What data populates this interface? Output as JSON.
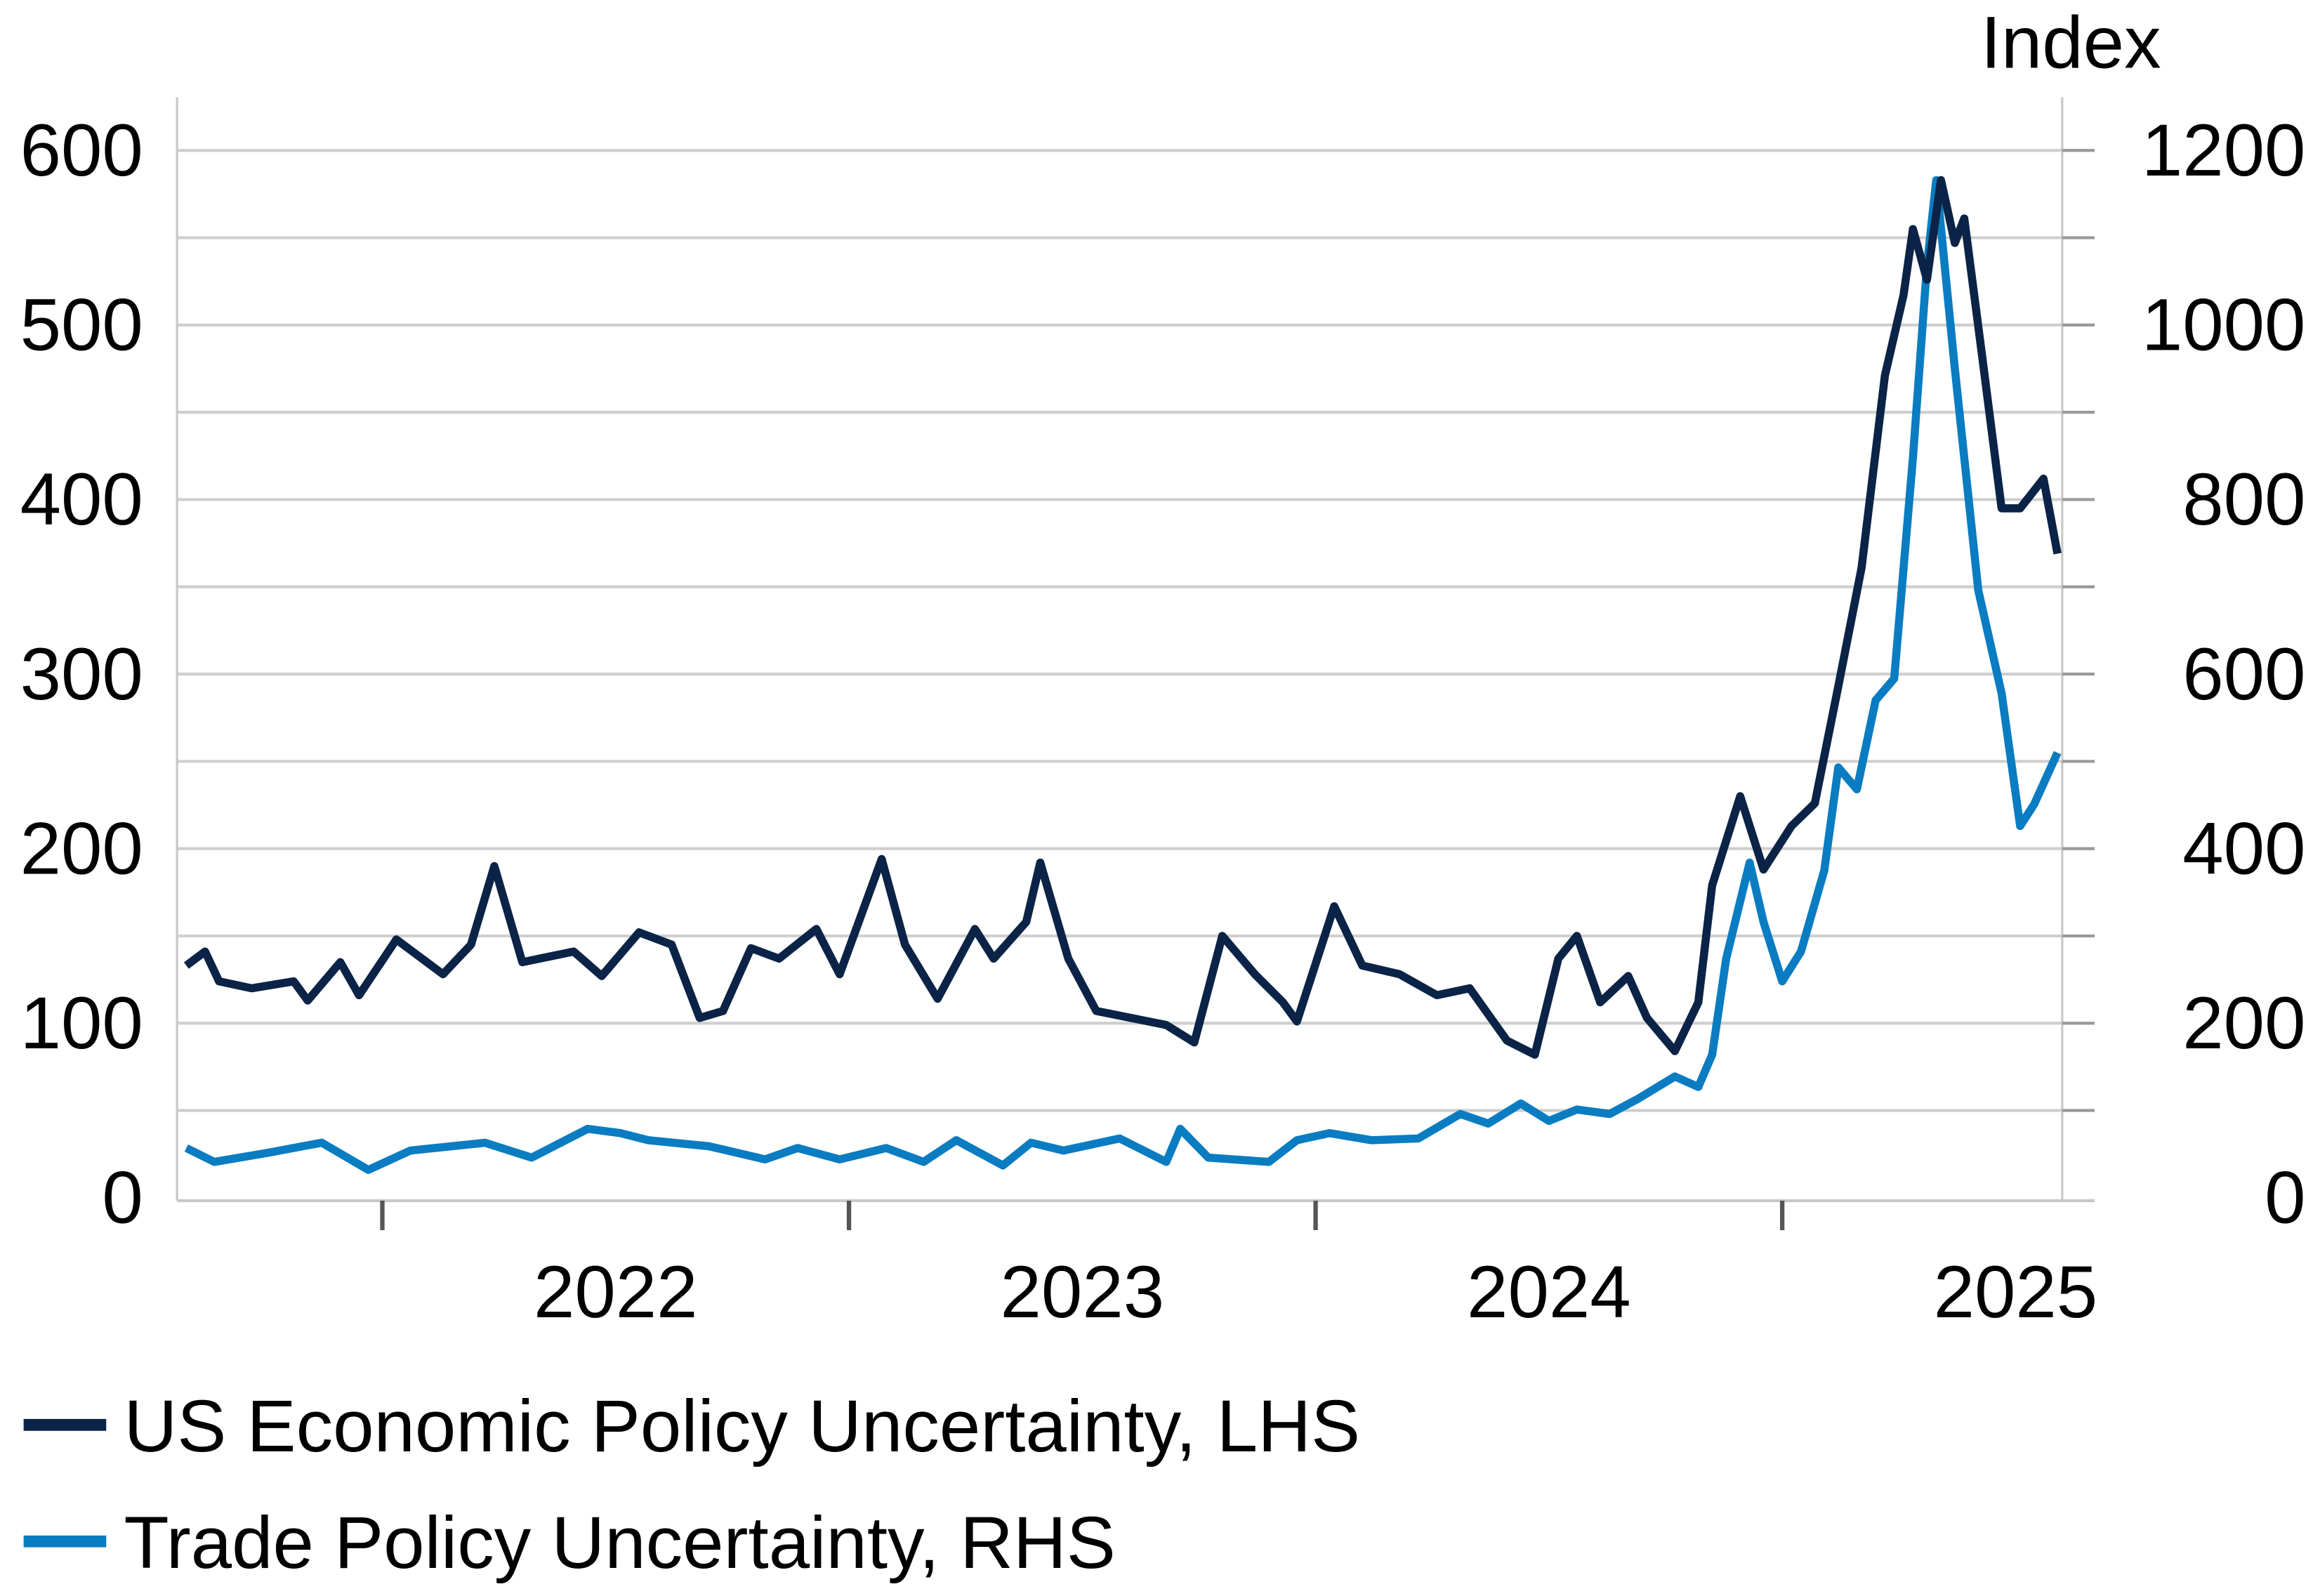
{
  "chart_data": {
    "type": "line",
    "title": "",
    "right_axis_title": "Index",
    "xlabel": "",
    "ylabel": "",
    "xlim": [
      2021.56,
      2025.6
    ],
    "x_ticks": [
      2022,
      2023,
      2024,
      2025
    ],
    "x_tick_labels": [
      "2022",
      "2023",
      "2024",
      "2025"
    ],
    "ylim_left": [
      0,
      600
    ],
    "y_ticks_left": [
      "0",
      "100",
      "200",
      "300",
      "400",
      "500",
      "600"
    ],
    "ylim_right": [
      0,
      1200
    ],
    "y_ticks_right": [
      "0",
      "200",
      "400",
      "600",
      "800",
      "1000",
      "1200"
    ],
    "grid": true,
    "legend_position": "bottom",
    "series": [
      {
        "name": "US Economic Policy Uncertainty, LHS",
        "axis": "left",
        "color": "#0b2346",
        "x": [
          2021.58,
          2021.62,
          2021.65,
          2021.72,
          2021.81,
          2021.84,
          2021.91,
          2021.95,
          2022.03,
          2022.13,
          2022.19,
          2022.24,
          2022.3,
          2022.41,
          2022.47,
          2022.55,
          2022.62,
          2022.68,
          2022.73,
          2022.79,
          2022.85,
          2022.93,
          2022.98,
          2023.07,
          2023.12,
          2023.19,
          2023.27,
          2023.31,
          2023.38,
          2023.41,
          2023.47,
          2023.53,
          2023.68,
          2023.74,
          2023.8,
          2023.87,
          2023.93,
          2023.96,
          2024.04,
          2024.1,
          2024.18,
          2024.26,
          2024.33,
          2024.41,
          2024.47,
          2024.52,
          2024.56,
          2024.61,
          2024.67,
          2024.71,
          2024.77,
          2024.82,
          2024.85,
          2024.91,
          2024.96,
          2025.02,
          2025.07,
          2025.12,
          2025.17,
          2025.22,
          2025.26,
          2025.28,
          2025.31,
          2025.34,
          2025.37,
          2025.39,
          2025.43,
          2025.47,
          2025.51,
          2025.56,
          2025.59
        ],
        "values": [
          133,
          141,
          124,
          120,
          124,
          113,
          135,
          116,
          148,
          128,
          145,
          190,
          135,
          141,
          127,
          152,
          145,
          103,
          107,
          143,
          137,
          154,
          128,
          194,
          145,
          114,
          154,
          137,
          158,
          192,
          137,
          107,
          99,
          89,
          150,
          128,
          112,
          101,
          167,
          133,
          128,
          116,
          120,
          90,
          82,
          137,
          150,
          112,
          127,
          103,
          84,
          112,
          179,
          230,
          188,
          213,
          226,
          293,
          361,
          471,
          517,
          555,
          526,
          583,
          547,
          561,
          479,
          395,
          395,
          412,
          369
        ]
      },
      {
        "name": "Trade Policy Uncertainty, RHS",
        "axis": "right",
        "color": "#0a7cc1",
        "x": [
          2021.58,
          2021.64,
          2021.75,
          2021.87,
          2021.97,
          2022.06,
          2022.22,
          2022.32,
          2022.44,
          2022.51,
          2022.57,
          2022.7,
          2022.82,
          2022.89,
          2022.98,
          2023.08,
          2023.16,
          2023.23,
          2023.33,
          2023.39,
          2023.46,
          2023.58,
          2023.68,
          2023.71,
          2023.77,
          2023.9,
          2023.96,
          2024.03,
          2024.12,
          2024.22,
          2024.31,
          2024.37,
          2024.44,
          2024.5,
          2024.56,
          2024.63,
          2024.69,
          2024.77,
          2024.82,
          2024.85,
          2024.88,
          2024.93,
          2024.96,
          2025.0,
          2025.04,
          2025.09,
          2025.12,
          2025.16,
          2025.2,
          2025.24,
          2025.28,
          2025.31,
          2025.33,
          2025.37,
          2025.42,
          2025.47,
          2025.51,
          2025.54,
          2025.59
        ],
        "values": [
          57,
          41,
          51,
          63,
          32,
          54,
          63,
          46,
          79,
          74,
          66,
          59,
          44,
          57,
          44,
          57,
          41,
          66,
          37,
          63,
          54,
          68,
          41,
          79,
          46,
          41,
          66,
          74,
          66,
          68,
          96,
          85,
          108,
          88,
          101,
          96,
          113,
          139,
          127,
          164,
          274,
          384,
          316,
          248,
          282,
          375,
          493,
          468,
          570,
          595,
          848,
          1068,
          1166,
          950,
          696,
          578,
          426,
          451,
          510
        ]
      }
    ]
  }
}
